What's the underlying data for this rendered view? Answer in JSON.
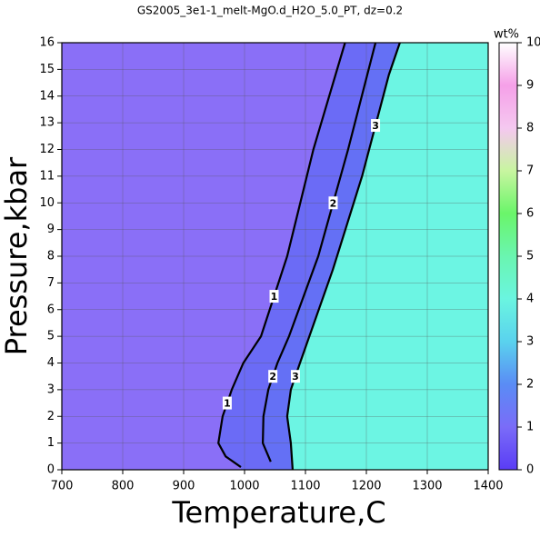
{
  "chart_data": {
    "type": "contour",
    "title": "GS2005_3e1-1_melt-MgO.d_H2O_5.0_PT, dz=0.2",
    "xlabel": "Temperature,C",
    "ylabel": "Pressure,kbar",
    "xlim": [
      700,
      1400
    ],
    "ylim": [
      0,
      16
    ],
    "xticks": [
      700,
      800,
      900,
      1000,
      1100,
      1200,
      1300,
      1400
    ],
    "yticks": [
      0,
      1,
      2,
      3,
      4,
      5,
      6,
      7,
      8,
      9,
      10,
      11,
      12,
      13,
      14,
      15,
      16
    ],
    "grid": true,
    "colorbar": {
      "label": "wt%",
      "lim": [
        0,
        10
      ],
      "ticks": [
        0,
        1,
        2,
        3,
        4,
        5,
        6,
        7,
        8,
        9,
        10
      ]
    },
    "contours": [
      {
        "level": 1,
        "x": [
          994,
          969,
          957,
          964,
          979,
          998,
          1027,
          1070,
          1113,
          1165
        ],
        "y": [
          0.1,
          0.5,
          1,
          2,
          3,
          4,
          5,
          8,
          12,
          16
        ]
      },
      {
        "level": 2,
        "x": [
          1043,
          1030,
          1031,
          1039,
          1054,
          1073,
          1121,
          1170,
          1215
        ],
        "y": [
          0.3,
          1,
          2,
          3,
          4,
          5,
          8,
          12,
          16
        ]
      },
      {
        "level": 3,
        "x": [
          1079,
          1076,
          1070,
          1076,
          1091,
          1145,
          1193,
          1237,
          1255
        ],
        "y": [
          0,
          1,
          2,
          3,
          4,
          7.5,
          11,
          14.8,
          16
        ]
      }
    ]
  }
}
